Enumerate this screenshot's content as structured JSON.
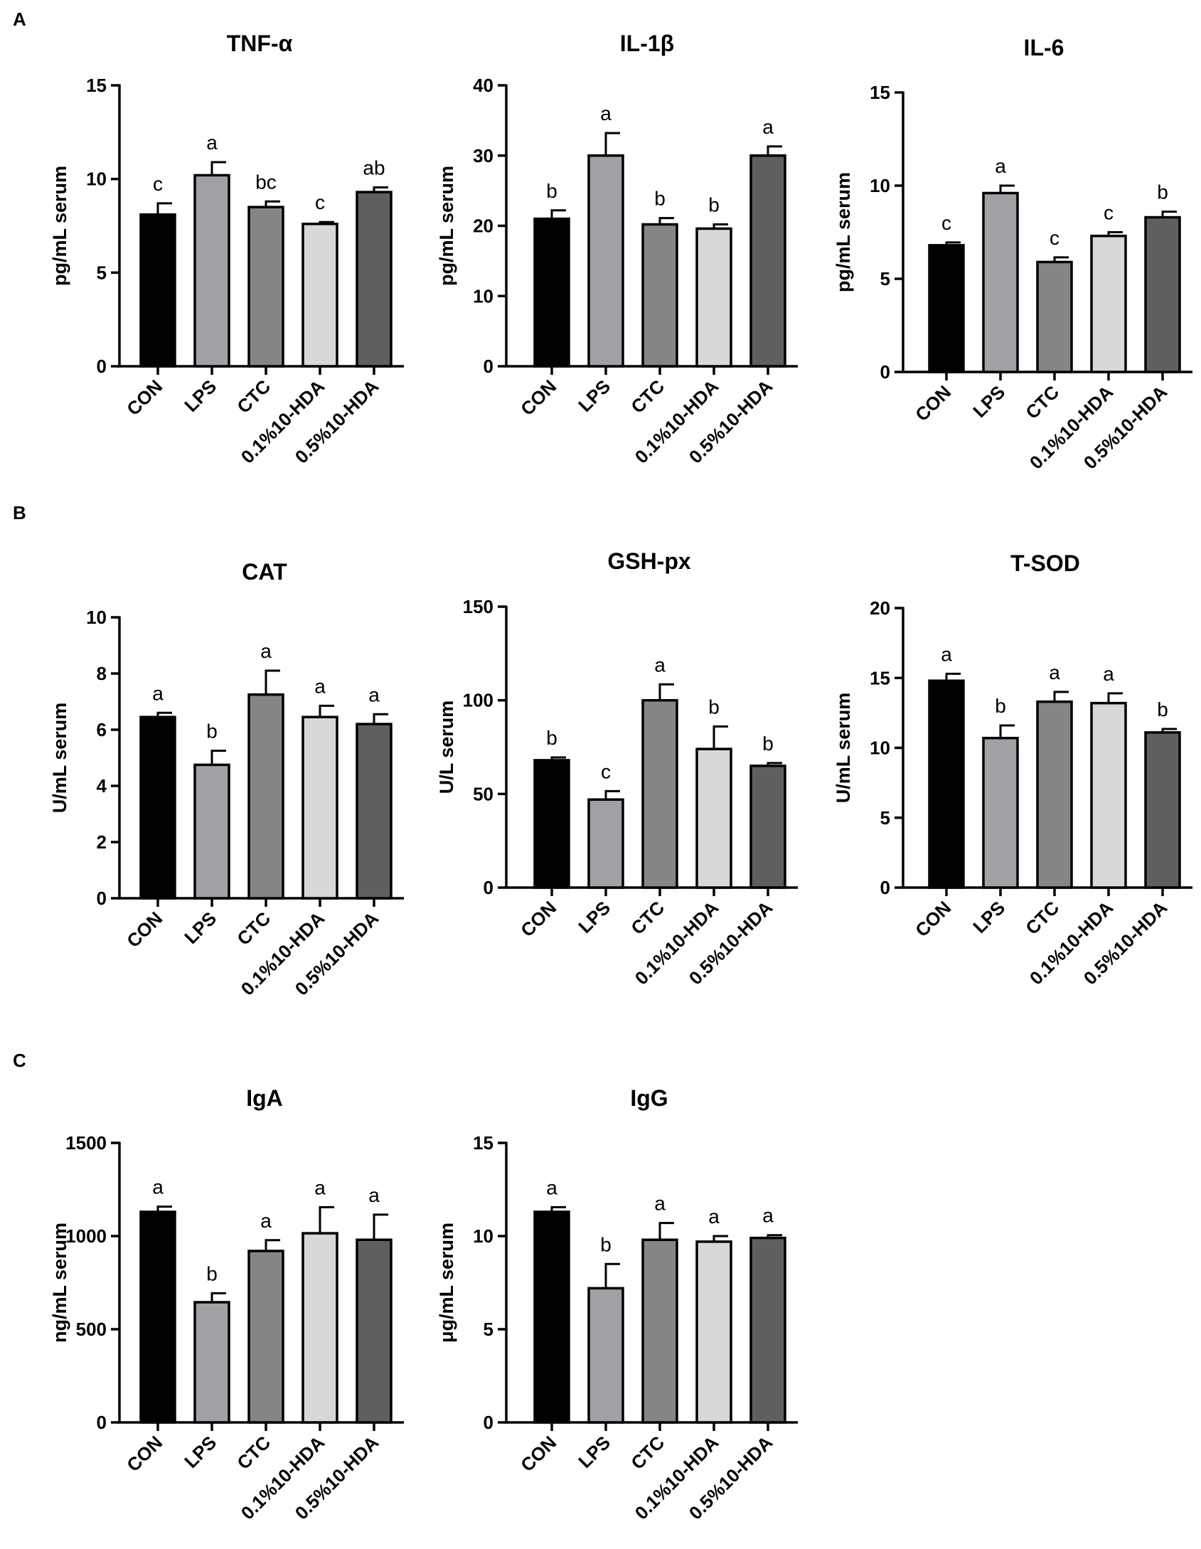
{
  "panels": [
    {
      "letter": "A"
    },
    {
      "letter": "B"
    },
    {
      "letter": "C"
    }
  ],
  "colors": {
    "CON": "#000000",
    "LPS": "#a0a0a5",
    "CTC": "#858585",
    "0.1%10-HDA": "#d8d8d8",
    "0.5%10-HDA": "#5f5f5f",
    "axis": "#000000"
  },
  "chart_data": [
    {
      "type": "bar",
      "panel": "A",
      "title": "TNF-α",
      "ylabel": "pg/mL serum",
      "categories": [
        "CON",
        "LPS",
        "CTC",
        "0.1%10-HDA",
        "0.5%10-HDA"
      ],
      "values": [
        8.1,
        10.2,
        8.5,
        7.6,
        9.3
      ],
      "errors": [
        0.6,
        0.7,
        0.3,
        0.1,
        0.25
      ],
      "labels": [
        "c",
        "a",
        "bc",
        "c",
        "ab"
      ],
      "ylim": [
        0,
        15
      ],
      "yticks": [
        0,
        5,
        10,
        15
      ]
    },
    {
      "type": "bar",
      "panel": "A",
      "title": "IL-1β",
      "ylabel": "pg/mL serum",
      "categories": [
        "CON",
        "LPS",
        "CTC",
        "0.1%10-HDA",
        "0.5%10-HDA"
      ],
      "values": [
        21,
        30,
        20.2,
        19.6,
        30
      ],
      "errors": [
        1.2,
        3.2,
        0.9,
        0.6,
        1.3
      ],
      "labels": [
        "b",
        "a",
        "b",
        "b",
        "a"
      ],
      "ylim": [
        0,
        40
      ],
      "yticks": [
        0,
        10,
        20,
        30,
        40
      ]
    },
    {
      "type": "bar",
      "panel": "A",
      "title": "IL-6",
      "ylabel": "pg/mL serum",
      "categories": [
        "CON",
        "LPS",
        "CTC",
        "0.1%10-HDA",
        "0.5%10-HDA"
      ],
      "values": [
        6.8,
        9.6,
        5.9,
        7.3,
        8.3
      ],
      "errors": [
        0.15,
        0.4,
        0.25,
        0.2,
        0.3
      ],
      "labels": [
        "c",
        "a",
        "c",
        "c",
        "b"
      ],
      "ylim": [
        0,
        15
      ],
      "yticks": [
        0,
        5,
        10,
        15
      ]
    },
    {
      "type": "bar",
      "panel": "B",
      "title": "CAT",
      "ylabel": "U/mL serum",
      "categories": [
        "CON",
        "LPS",
        "CTC",
        "0.1%10-HDA",
        "0.5%10-HDA"
      ],
      "values": [
        6.45,
        4.75,
        7.25,
        6.45,
        6.2
      ],
      "errors": [
        0.15,
        0.5,
        0.85,
        0.4,
        0.35
      ],
      "labels": [
        "a",
        "b",
        "a",
        "a",
        "a"
      ],
      "ylim": [
        0,
        10
      ],
      "yticks": [
        0,
        2,
        4,
        6,
        8,
        10
      ]
    },
    {
      "type": "bar",
      "panel": "B",
      "title": "GSH-px",
      "ylabel": "U/L serum",
      "categories": [
        "CON",
        "LPS",
        "CTC",
        "0.1%10-HDA",
        "0.5%10-HDA"
      ],
      "values": [
        68,
        47,
        100,
        74,
        65
      ],
      "errors": [
        1.5,
        4.5,
        8.5,
        12,
        1.5
      ],
      "labels": [
        "b",
        "c",
        "a",
        "b",
        "b"
      ],
      "ylim": [
        0,
        150
      ],
      "yticks": [
        0,
        50,
        100,
        150
      ]
    },
    {
      "type": "bar",
      "panel": "B",
      "title": "T-SOD",
      "ylabel": "U/mL serum",
      "categories": [
        "CON",
        "LPS",
        "CTC",
        "0.1%10-HDA",
        "0.5%10-HDA"
      ],
      "values": [
        14.8,
        10.7,
        13.3,
        13.2,
        11.1
      ],
      "errors": [
        0.5,
        0.9,
        0.7,
        0.7,
        0.25
      ],
      "labels": [
        "a",
        "b",
        "a",
        "a",
        "b"
      ],
      "ylim": [
        0,
        20
      ],
      "yticks": [
        0,
        5,
        10,
        15,
        20
      ]
    },
    {
      "type": "bar",
      "panel": "C",
      "title": "IgA",
      "ylabel": "ng/mL serum",
      "categories": [
        "CON",
        "LPS",
        "CTC",
        "0.1%10-HDA",
        "0.5%10-HDA"
      ],
      "values": [
        1130,
        645,
        920,
        1015,
        980
      ],
      "errors": [
        28,
        48,
        58,
        140,
        135
      ],
      "labels": [
        "a",
        "b",
        "a",
        "a",
        "a"
      ],
      "ylim": [
        0,
        1500
      ],
      "yticks": [
        0,
        500,
        1000,
        1500
      ]
    },
    {
      "type": "bar",
      "panel": "C",
      "title": "IgG",
      "ylabel": "μg/mL serum",
      "categories": [
        "CON",
        "LPS",
        "CTC",
        "0.1%10-HDA",
        "0.5%10-HDA"
      ],
      "values": [
        11.3,
        7.2,
        9.8,
        9.7,
        9.9
      ],
      "errors": [
        0.25,
        1.3,
        0.9,
        0.3,
        0.15
      ],
      "labels": [
        "a",
        "b",
        "a",
        "a",
        "a"
      ],
      "ylim": [
        0,
        15
      ],
      "yticks": [
        0,
        5,
        10,
        15
      ]
    }
  ]
}
